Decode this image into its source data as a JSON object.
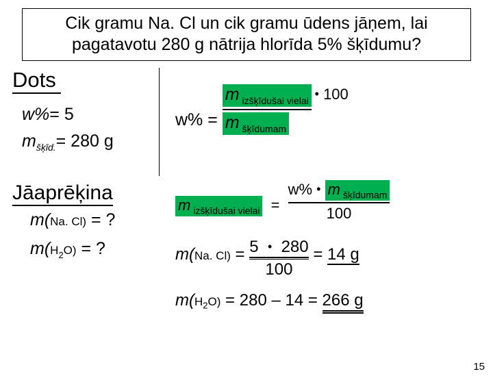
{
  "question": {
    "line1": "Cik gramu Na. Cl un cik gramu ūdens jāņem, lai",
    "line2": "pagatavotu 280 g nātrija hlorīda 5% šķīdumu?"
  },
  "given_heading": "Dots",
  "given": {
    "w_label": "w%",
    "w_val": "= 5",
    "m_label": "m",
    "m_sub": "šķīd.",
    "m_val": "= 280 g"
  },
  "formula1": {
    "lhs": "w% =",
    "num_m": "m",
    "num_sub": " izšķīdušai vielai",
    "mult": "100",
    "den_m": "m",
    "den_sub": " šķīdumam"
  },
  "jaap": "Jāaprēķina",
  "req1": {
    "fn": "m(",
    "par": "Na. Cl)",
    "tail": " = ?"
  },
  "req2": {
    "fn": "m(",
    "par": "H",
    "sub": "2",
    "par2": "O)",
    "tail": " = ?"
  },
  "rearr": {
    "lhs_m": "m",
    "lhs_sub": " izšķīdušai vielai",
    "eq": "=",
    "num_w": "w%",
    "num_dot": "•",
    "num_m": "m",
    "num_msub": " šķīdumam",
    "den": "100"
  },
  "calc1": {
    "lhs_fn": "m(",
    "lhs_par": "Na. Cl)",
    "eq": " = ",
    "num": "5  •  280",
    "den": "100",
    "eq2": " = ",
    "res": "14 g"
  },
  "calc2": {
    "lhs_fn": "m(",
    "lhs_par": "H",
    "lhs_sub": "2",
    "lhs_par2": "O)",
    "eq": " = ",
    "expr": "280 – 14 = ",
    "res": "266 g"
  },
  "page": "15",
  "style": {
    "highlight_bg": "#00b050",
    "text_color": "#000000",
    "bg": "#ffffff"
  }
}
